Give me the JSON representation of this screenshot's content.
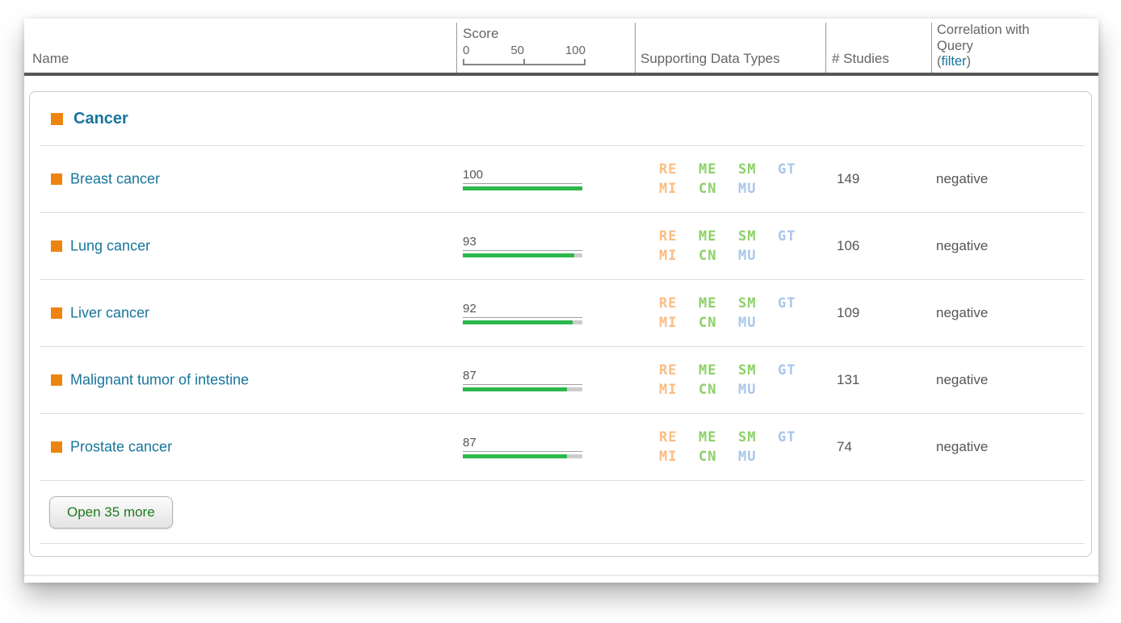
{
  "header": {
    "name_label": "Name",
    "score": {
      "label": "Score",
      "ticks": [
        "0",
        "50",
        "100"
      ]
    },
    "supporting_label": "Supporting Data Types",
    "studies_label": "# Studies",
    "correlation": {
      "line1": "Correlation with",
      "line2": "Query",
      "open_paren": "(",
      "filter_link": "filter",
      "close_paren": ")"
    }
  },
  "category": {
    "title": "Cancer"
  },
  "badges": [
    {
      "code": "RE",
      "color": "#f9bc84"
    },
    {
      "code": "ME",
      "color": "#8cd167"
    },
    {
      "code": "SM",
      "color": "#8cd167"
    },
    {
      "code": "GT",
      "color": "#a9c6ea"
    },
    {
      "code": "MI",
      "color": "#f9bc84"
    },
    {
      "code": "CN",
      "color": "#8cd167"
    },
    {
      "code": "MU",
      "color": "#a9c6ea"
    }
  ],
  "rows": [
    {
      "name": "Breast cancer",
      "score": 100,
      "studies": "149",
      "correlation": "negative"
    },
    {
      "name": "Lung cancer",
      "score": 93,
      "studies": "106",
      "correlation": "negative"
    },
    {
      "name": "Liver cancer",
      "score": 92,
      "studies": "109",
      "correlation": "negative"
    },
    {
      "name": "Malignant tumor of intestine",
      "score": 87,
      "studies": "131",
      "correlation": "negative"
    },
    {
      "name": "Prostate cancer",
      "score": 87,
      "studies": "74",
      "correlation": "negative"
    }
  ],
  "footer": {
    "open_more_label": "Open 35 more"
  },
  "colors": {
    "accent_orange": "#ee8410",
    "link_teal": "#17759c",
    "bar_green": "#2cb84c",
    "bar_track": "#cccccc",
    "button_text_green": "#1e7a1e"
  }
}
